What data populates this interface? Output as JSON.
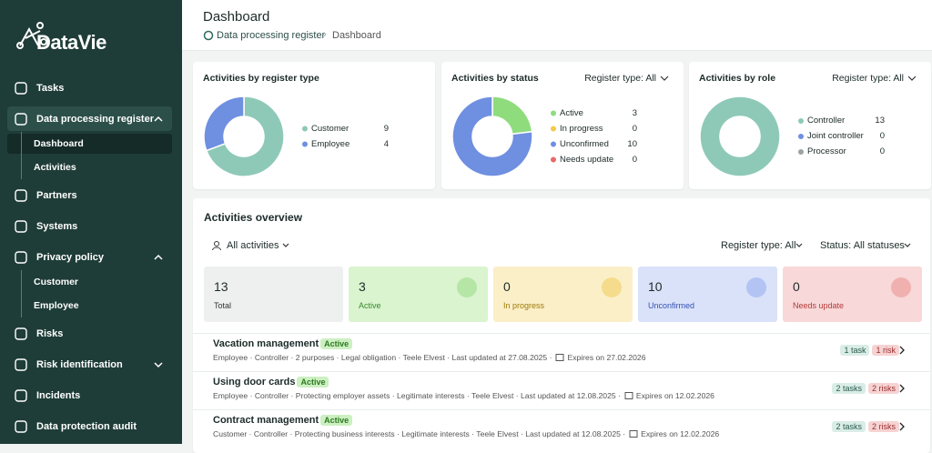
{
  "sidebar": {
    "logo": "DataVie",
    "menu": [
      {
        "label": "Tasks"
      },
      {
        "label": "Data processing register",
        "children": [
          "Dashboard",
          "Activities"
        ]
      },
      {
        "label": "Partners"
      },
      {
        "label": "Systems"
      },
      {
        "label": "Privacy policy",
        "children": [
          "Customer",
          "Employee"
        ]
      },
      {
        "label": "Risks"
      },
      {
        "label": "Risk identification"
      },
      {
        "label": "Incidents"
      },
      {
        "label": "Data protection audit"
      }
    ]
  },
  "header": {
    "title": "Dashboard",
    "breadcrumb": [
      "Data processing register",
      "Dashboard"
    ]
  },
  "chart_data": [
    {
      "type": "donut",
      "title": "Activities by register type",
      "categories": [
        "Customer",
        "Employee"
      ],
      "values": [
        9,
        4
      ],
      "colors": [
        "#8ec9b7",
        "#6f8fe0"
      ]
    },
    {
      "type": "donut",
      "title": "Activities by status",
      "filter": "Register type: All",
      "categories": [
        "Active",
        "In progress",
        "Unconfirmed",
        "Needs update"
      ],
      "values": [
        3,
        0,
        10,
        0
      ],
      "colors": [
        "#8fdc7d",
        "#f2c94c",
        "#6f8fe0",
        "#e86a6a"
      ]
    },
    {
      "type": "donut",
      "title": "Activities by role",
      "filter": "Register type: All",
      "categories": [
        "Controller",
        "Joint controller",
        "Processor"
      ],
      "values": [
        13,
        0,
        0
      ],
      "colors": [
        "#8ec9b7",
        "#6f8fe0",
        "#9aa3a3"
      ]
    }
  ],
  "overview": {
    "title": "Activities overview",
    "filters": [
      "All activities",
      "Register type: All",
      "Status: All statuses"
    ],
    "stats": [
      {
        "value": 13,
        "label": "Total"
      },
      {
        "value": 3,
        "label": "Active"
      },
      {
        "value": 0,
        "label": "In progress"
      },
      {
        "value": 10,
        "label": "Unconfirmed"
      },
      {
        "value": 0,
        "label": "Needs update"
      }
    ],
    "activities": [
      {
        "name": "Vacation management",
        "status": "Active",
        "meta": "Employee · Controller · 2 purposes · Legal obligation · Teele Elvest · Last updated at 27.08.2025 ·",
        "expires": "Expires on 27.02.2026",
        "badges": [
          "1 task",
          "1 risk"
        ]
      },
      {
        "name": "Using door cards",
        "status": "Active",
        "meta": "Employee · Controller · Protecting employer assets · Legitimate interests · Teele Elvest · Last updated at 12.08.2025 ·",
        "expires": "Expires on 12.02.2026",
        "badges": [
          "2 tasks",
          "2 risks"
        ]
      },
      {
        "name": "Contract management",
        "status": "Active",
        "meta": "Customer · Controller · Protecting business interests · Legitimate interests · Teele Elvest · Last updated at 12.08.2025 ·",
        "expires": "Expires on 12.02.2026",
        "badges": [
          "2 tasks",
          "2 risks"
        ]
      }
    ]
  }
}
